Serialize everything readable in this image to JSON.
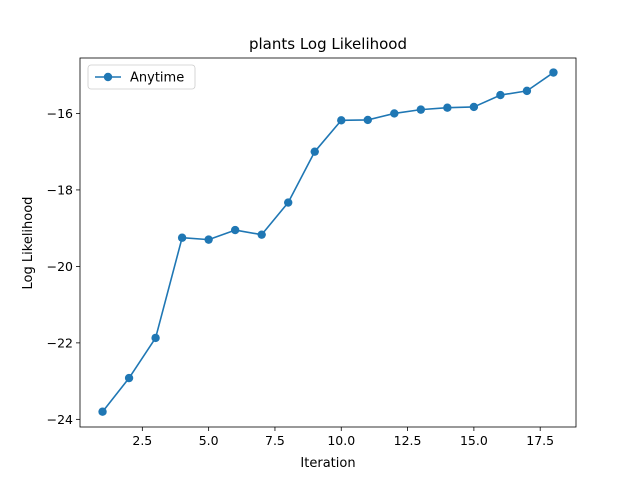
{
  "chart_data": {
    "type": "line",
    "title": "plants Log Likelihood",
    "xlabel": "Iteration",
    "ylabel": "Log Likelihood",
    "xlim": [
      0.15,
      18.85
    ],
    "ylim": [
      -24.2,
      -14.55
    ],
    "xticks": [
      2.5,
      5.0,
      7.5,
      10.0,
      12.5,
      15.0,
      17.5
    ],
    "xtick_labels": [
      "2.5",
      "5.0",
      "7.5",
      "10.0",
      "12.5",
      "15.0",
      "17.5"
    ],
    "yticks": [
      -24,
      -22,
      -20,
      -18,
      -16
    ],
    "ytick_labels": [
      "−24",
      "−22",
      "−20",
      "−18",
      "−16"
    ],
    "grid": false,
    "legend_position": "upper-left",
    "series": [
      {
        "name": "Anytime",
        "color": "#1f77b4",
        "marker": "circle",
        "x": [
          1,
          2,
          3,
          4,
          5,
          6,
          7,
          8,
          9,
          10,
          11,
          12,
          13,
          14,
          15,
          16,
          17,
          18
        ],
        "y": [
          -23.8,
          -22.92,
          -21.87,
          -19.25,
          -19.3,
          -19.05,
          -19.17,
          -18.33,
          -17.0,
          -16.18,
          -16.17,
          -16.0,
          -15.9,
          -15.85,
          -15.83,
          -15.52,
          -15.41,
          -14.93
        ]
      }
    ]
  }
}
